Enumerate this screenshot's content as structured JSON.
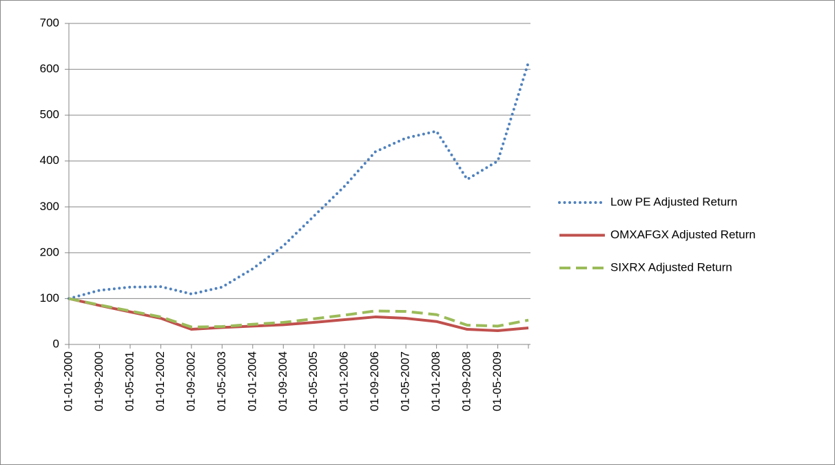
{
  "chart_data": {
    "type": "line",
    "categories": [
      "01-01-2000",
      "01-09-2000",
      "01-05-2001",
      "01-01-2002",
      "01-09-2002",
      "01-05-2003",
      "01-01-2004",
      "01-09-2004",
      "01-05-2005",
      "01-01-2006",
      "01-09-2006",
      "01-05-2007",
      "01-01-2008",
      "01-09-2008",
      "01-05-2009",
      null
    ],
    "series": [
      {
        "name": "Low PE Adjusted Return",
        "color": "#4f81bd",
        "dash": "dotted",
        "values": [
          100,
          118,
          125,
          126,
          110,
          125,
          165,
          215,
          280,
          345,
          420,
          450,
          465,
          360,
          400,
          615
        ]
      },
      {
        "name": "OMXAFGX Adjusted Return",
        "color": "#c0504d",
        "dash": "solid",
        "values": [
          100,
          85,
          71,
          57,
          33,
          37,
          40,
          43,
          48,
          54,
          60,
          57,
          50,
          33,
          30,
          36
        ]
      },
      {
        "name": "SIXRX Adjusted Return",
        "color": "#9bbb59",
        "dash": "dashed",
        "values": [
          100,
          86,
          73,
          60,
          38,
          39,
          44,
          48,
          56,
          64,
          73,
          72,
          65,
          42,
          40,
          53
        ]
      }
    ],
    "ylim": [
      0,
      700
    ],
    "yticks": [
      0,
      100,
      200,
      300,
      400,
      500,
      600,
      700
    ],
    "grid": true,
    "legend": "right"
  }
}
